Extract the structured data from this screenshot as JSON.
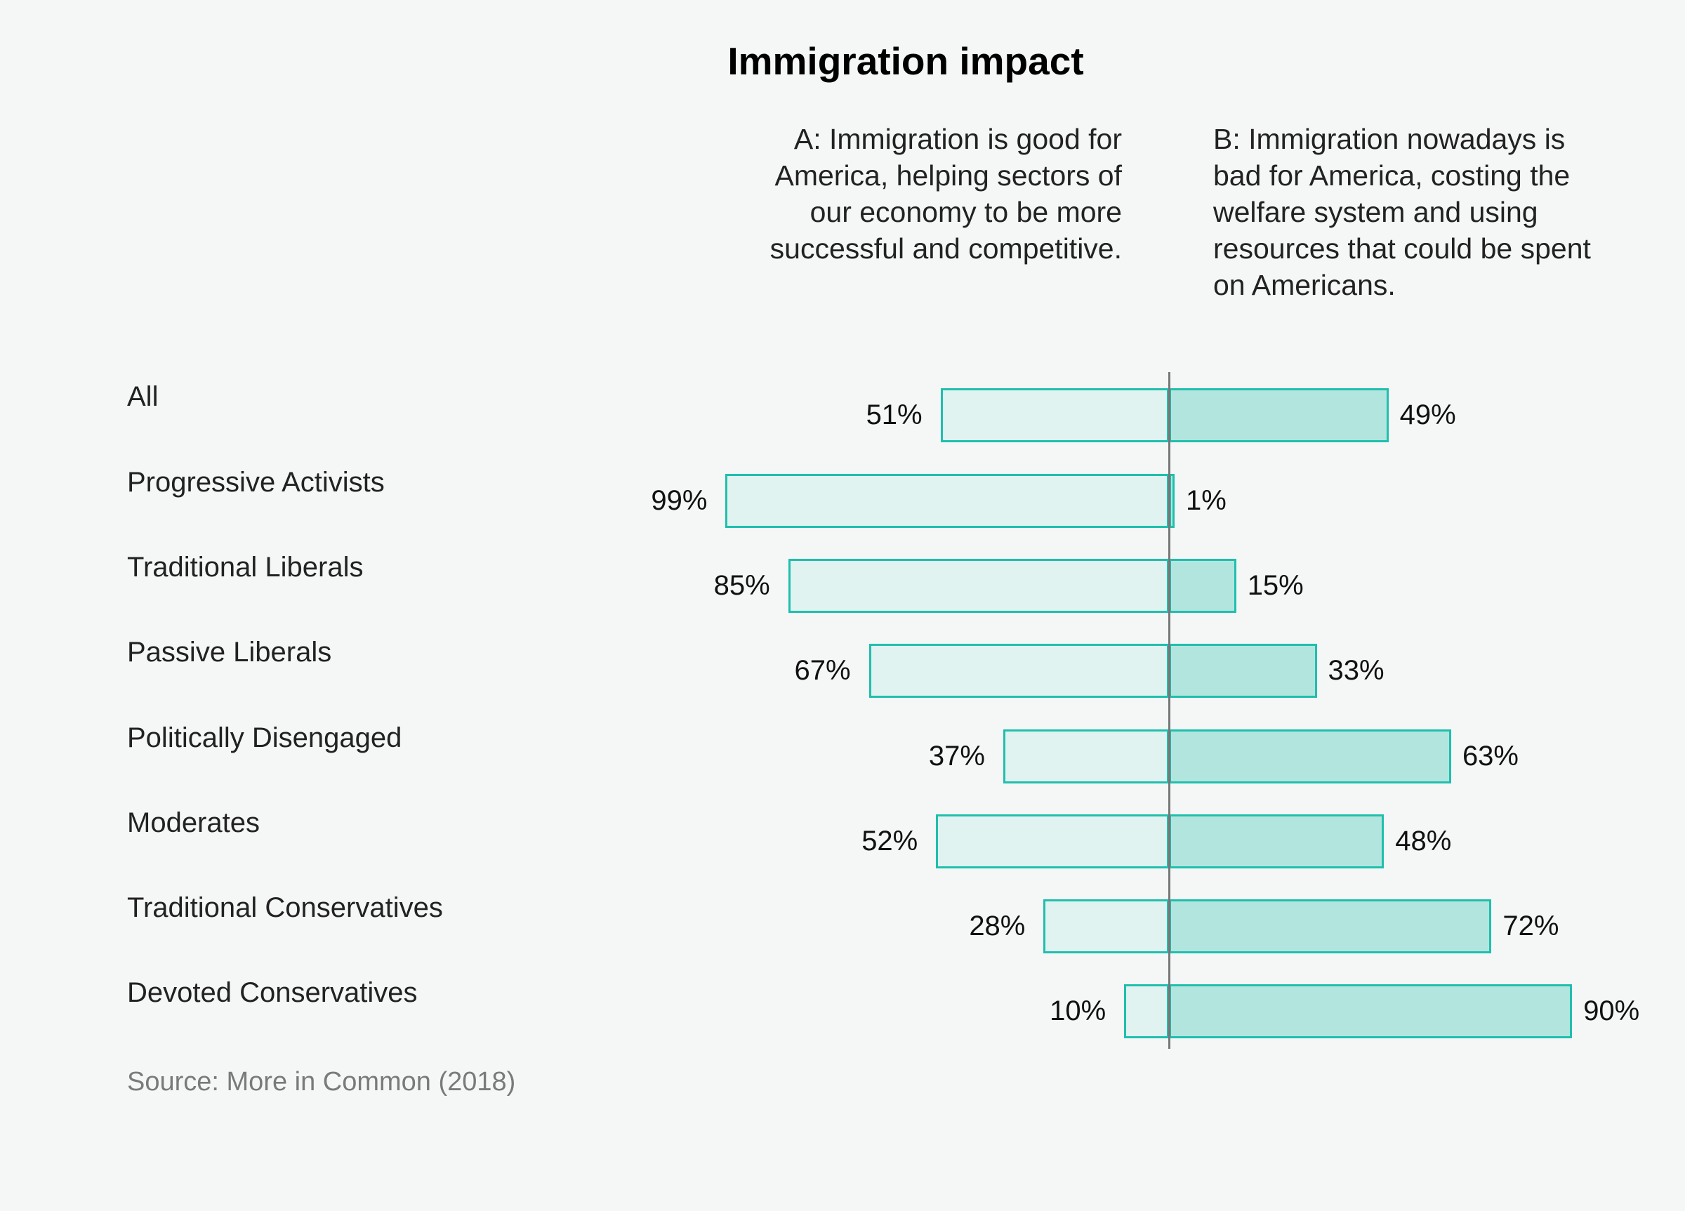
{
  "chart_data": {
    "type": "bar",
    "orientation": "horizontal-diverging",
    "title": "Immigration impact",
    "series": [
      {
        "name": "A: Immigration is good for America, helping sectors of our economy to be more successful and competitive.",
        "values": [
          51,
          99,
          85,
          67,
          37,
          52,
          28,
          10
        ],
        "color": "#e0f3f1"
      },
      {
        "name": "B: Immigration nowadays is bad for America, costing the welfare system and using resources that could be spent on Americans.",
        "values": [
          49,
          1,
          15,
          33,
          63,
          48,
          72,
          90
        ],
        "color": "#b3e5df"
      }
    ],
    "categories": [
      "All",
      "Progressive Activists",
      "Traditional Liberals",
      "Passive Liberals",
      "Politically Disengaged",
      "Moderates",
      "Traditional Conservatives",
      "Devoted Conservatives"
    ],
    "value_suffix": "%",
    "border_color": "#1fbfad",
    "xlim": [
      -100,
      100
    ],
    "grid": false,
    "source": "Source: More in Common (2018)"
  }
}
